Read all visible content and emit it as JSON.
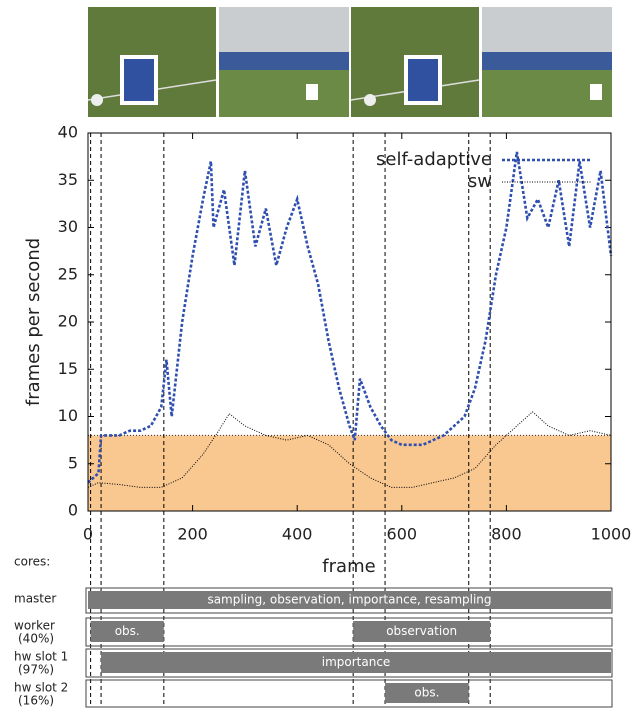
{
  "chart_data": {
    "type": "line",
    "ylabel": "frames per second",
    "xlabel": "frame",
    "xlim": [
      0,
      1000
    ],
    "xticks": [
      0,
      200,
      400,
      600,
      800,
      1000
    ],
    "ylim": [
      0,
      40
    ],
    "yticks": [
      0,
      5,
      10,
      15,
      20,
      25,
      30,
      35,
      40
    ],
    "threshold": 8,
    "threshold_color": "#f9c891",
    "phase_boundaries": [
      5,
      25,
      145,
      507,
      568,
      728,
      769
    ],
    "legend": "upper right",
    "series": [
      {
        "name": "self-adaptive",
        "color": "#2f4fb0",
        "x": [
          0,
          20,
          25,
          40,
          60,
          80,
          100,
          120,
          140,
          150,
          160,
          180,
          200,
          220,
          235,
          240,
          260,
          280,
          300,
          320,
          340,
          360,
          380,
          400,
          420,
          440,
          460,
          480,
          500,
          510,
          520,
          540,
          560,
          580,
          600,
          620,
          640,
          660,
          680,
          700,
          720,
          740,
          760,
          780,
          800,
          820,
          840,
          860,
          880,
          900,
          920,
          940,
          960,
          980,
          1000
        ],
        "values": [
          3,
          4,
          8,
          8,
          8,
          8.5,
          8.5,
          9,
          11,
          16,
          10,
          20,
          27,
          33,
          37,
          30,
          34,
          26,
          36,
          28,
          32,
          26,
          30,
          33,
          28,
          24,
          18,
          13,
          9,
          7.5,
          14,
          11,
          9,
          7.5,
          7,
          7,
          7,
          7.5,
          8,
          9,
          10,
          13,
          18,
          25,
          30,
          38,
          31,
          33,
          30,
          35,
          28,
          37,
          30,
          36,
          27
        ]
      },
      {
        "name": "sw",
        "color": "#000000",
        "x": [
          0,
          20,
          60,
          100,
          140,
          180,
          220,
          250,
          270,
          300,
          340,
          380,
          420,
          460,
          500,
          540,
          580,
          620,
          660,
          700,
          740,
          780,
          820,
          850,
          880,
          920,
          960,
          1000
        ],
        "values": [
          2.5,
          3,
          2.8,
          2.5,
          2.5,
          3.5,
          6,
          8.5,
          10.3,
          9,
          8,
          7.5,
          8,
          7,
          5,
          3.5,
          2.5,
          2.5,
          3,
          3.5,
          4.5,
          7,
          9,
          10.5,
          9,
          8,
          8.5,
          8
        ]
      }
    ]
  },
  "gantt": {
    "title": "cores:",
    "bar_color": "#7a7a7a",
    "rows": [
      {
        "label": "master",
        "tasks": [
          {
            "label": "sampling, observation, importance, resampling",
            "start": 0,
            "end": 1000
          }
        ]
      },
      {
        "label": "worker",
        "share": "(40%)",
        "tasks": [
          {
            "label": "obs.",
            "start": 5,
            "end": 145
          },
          {
            "label": "observation",
            "start": 507,
            "end": 769
          }
        ]
      },
      {
        "label": "hw slot 1",
        "share": "(97%)",
        "tasks": [
          {
            "label": "importance",
            "start": 25,
            "end": 1000
          }
        ]
      },
      {
        "label": "hw slot 2",
        "share": "(16%)",
        "tasks": [
          {
            "label": "obs.",
            "start": 568,
            "end": 728
          }
        ]
      }
    ]
  }
}
